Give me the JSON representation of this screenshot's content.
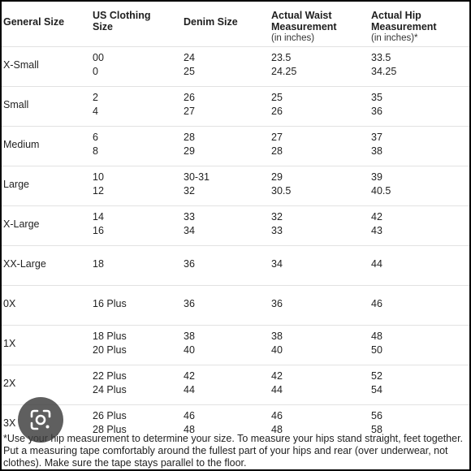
{
  "headers": {
    "general": "General Size",
    "us_line1": "US Clothing",
    "us_line2": "Size",
    "denim": "Denim Size",
    "waist_line1": "Actual Waist",
    "waist_line2": "Measurement",
    "waist_unit": "(in inches)",
    "hip_line1": "Actual Hip",
    "hip_line2": "Measurement",
    "hip_unit": "(in inches)*"
  },
  "rows": [
    {
      "general": "X-Small",
      "us": [
        "00",
        "0"
      ],
      "denim": [
        "24",
        "25"
      ],
      "waist": [
        "23.5",
        "24.25"
      ],
      "hip": [
        "33.5",
        "34.25"
      ]
    },
    {
      "general": "Small",
      "us": [
        "2",
        "4"
      ],
      "denim": [
        "26",
        "27"
      ],
      "waist": [
        "25",
        "26"
      ],
      "hip": [
        "35",
        "36"
      ]
    },
    {
      "general": "Medium",
      "us": [
        "6",
        "8"
      ],
      "denim": [
        "28",
        "29"
      ],
      "waist": [
        "27",
        "28"
      ],
      "hip": [
        "37",
        "38"
      ]
    },
    {
      "general": "Large",
      "us": [
        "10",
        "12"
      ],
      "denim": [
        "30-31",
        "32"
      ],
      "waist": [
        "29",
        "30.5"
      ],
      "hip": [
        "39",
        "40.5"
      ]
    },
    {
      "general": "X-Large",
      "us": [
        "14",
        "16"
      ],
      "denim": [
        "33",
        "34"
      ],
      "waist": [
        "32",
        "33"
      ],
      "hip": [
        "42",
        "43"
      ]
    },
    {
      "general": "XX-Large",
      "us": [
        "18"
      ],
      "denim": [
        "36"
      ],
      "waist": [
        "34"
      ],
      "hip": [
        "44"
      ]
    },
    {
      "general": "0X",
      "us": [
        "16 Plus"
      ],
      "denim": [
        "36"
      ],
      "waist": [
        "36"
      ],
      "hip": [
        "46"
      ]
    },
    {
      "general": "1X",
      "us": [
        "18 Plus",
        "20 Plus"
      ],
      "denim": [
        "38",
        "40"
      ],
      "waist": [
        "38",
        "40"
      ],
      "hip": [
        "48",
        "50"
      ]
    },
    {
      "general": "2X",
      "us": [
        "22 Plus",
        "24 Plus"
      ],
      "denim": [
        "42",
        "44"
      ],
      "waist": [
        "42",
        "44"
      ],
      "hip": [
        "52",
        "54"
      ]
    },
    {
      "general": "3X",
      "us": [
        "26 Plus",
        "28 Plus"
      ],
      "denim": [
        "46",
        "48"
      ],
      "waist": [
        "46",
        "48"
      ],
      "hip": [
        "56",
        "58"
      ]
    }
  ],
  "footnote": "*Use your hip measurement to determine your size. To measure your hips stand straight, feet together. Put a measuring tape comfortably around the fullest part of your hips and rear (over underwear, not clothes). Make sure the tape stays parallel to the floor.",
  "lens_icon": "google-lens-icon"
}
